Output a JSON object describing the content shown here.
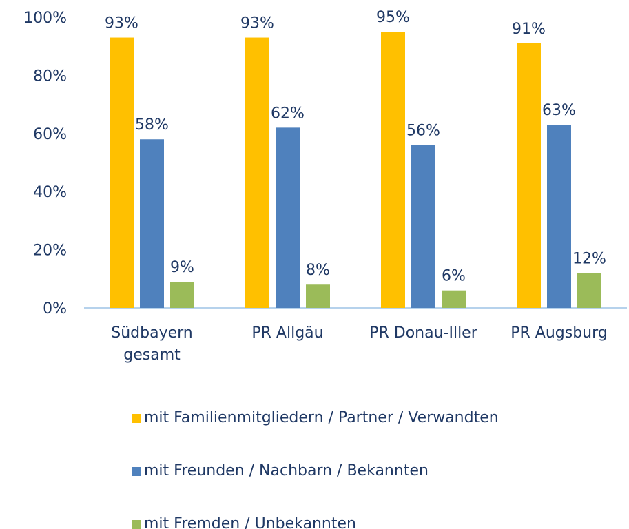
{
  "chart_data": {
    "type": "bar",
    "categories": [
      "Südbayern gesamt",
      "PR Allgäu",
      "PR Donau-Iller",
      "PR Augsburg"
    ],
    "series": [
      {
        "name": "mit Familienmitgliedern / Partner / Verwandten",
        "color": "#FFC000",
        "values": [
          93,
          93,
          95,
          91
        ],
        "value_labels": [
          "93%",
          "93%",
          "95%",
          "91%"
        ]
      },
      {
        "name": "mit Freunden / Nachbarn / Bekannten",
        "color": "#4F81BD",
        "values": [
          58,
          62,
          56,
          63
        ],
        "value_labels": [
          "58%",
          "62%",
          "56%",
          "63%"
        ]
      },
      {
        "name": "mit Fremden / Unbekannten",
        "color": "#9BBB59",
        "values": [
          9,
          8,
          6,
          12
        ],
        "value_labels": [
          "9%",
          "8%",
          "6%",
          "12%"
        ]
      }
    ],
    "ylim": [
      0,
      100
    ],
    "yticks": [
      {
        "value": 0,
        "label": "0%"
      },
      {
        "value": 20,
        "label": "20%"
      },
      {
        "value": 40,
        "label": "40%"
      },
      {
        "value": 60,
        "label": "60%"
      },
      {
        "value": 80,
        "label": "80%"
      },
      {
        "value": 100,
        "label": "100%"
      }
    ],
    "legend": "bottom"
  }
}
